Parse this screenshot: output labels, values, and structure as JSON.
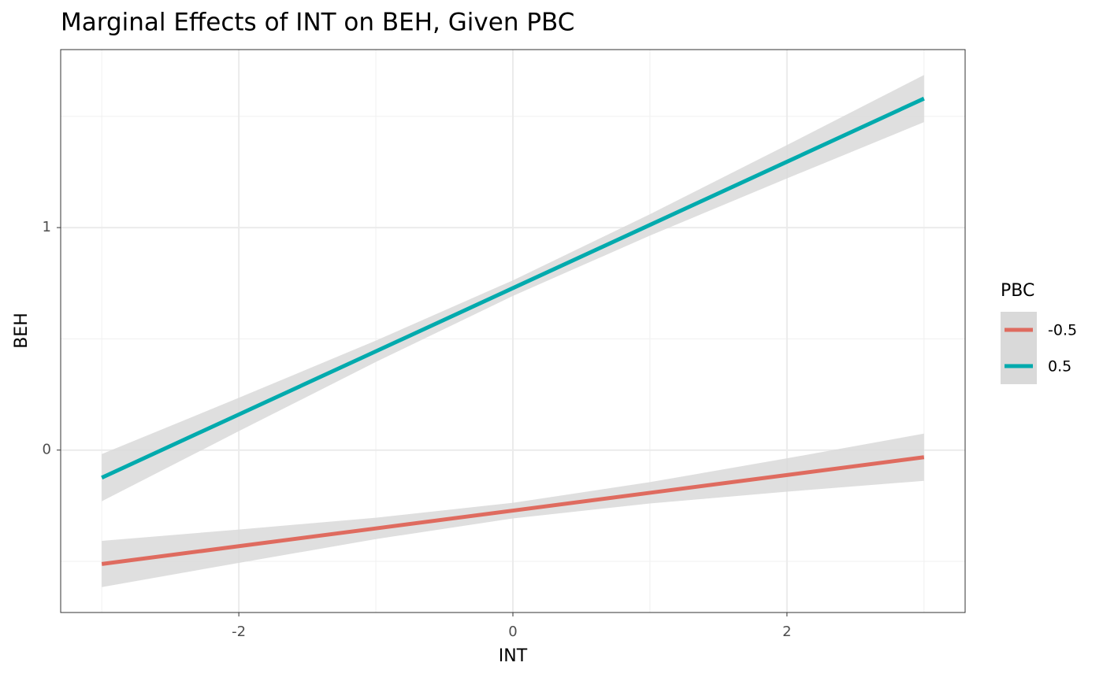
{
  "chart_data": {
    "type": "line",
    "title": "Marginal Effects of INT on BEH, Given PBC",
    "x_label": "INT",
    "y_label": "BEH",
    "legend_title": "PBC",
    "legend_position": "right",
    "x": [
      -3,
      -2,
      -1,
      0,
      1,
      2,
      3
    ],
    "series": [
      {
        "name": "-0.5",
        "color": "#df6b5f",
        "values": [
          -0.512,
          -0.432,
          -0.352,
          -0.272,
          -0.192,
          -0.112,
          -0.032
        ],
        "lower": [
          -0.616,
          -0.507,
          -0.4,
          -0.307,
          -0.24,
          -0.187,
          -0.138
        ],
        "upper": [
          -0.408,
          -0.357,
          -0.304,
          -0.237,
          -0.144,
          -0.037,
          0.074
        ]
      },
      {
        "name": "0.5",
        "color": "#00aaad",
        "values": [
          -0.124,
          0.16,
          0.444,
          0.728,
          1.012,
          1.296,
          1.58
        ],
        "lower": [
          -0.23,
          0.085,
          0.396,
          0.693,
          0.964,
          1.221,
          1.474
        ],
        "upper": [
          -0.018,
          0.235,
          0.492,
          0.763,
          1.06,
          1.371,
          1.686
        ]
      }
    ],
    "band_color": "#d9d9d9",
    "xlim": [
      -3.3,
      3.3
    ],
    "ylim": [
      -0.73,
      1.8
    ],
    "xticks": [
      -2,
      0,
      2
    ],
    "yticks": [
      0,
      1
    ],
    "x_minor_grid": [
      -3,
      -1,
      1,
      3
    ],
    "y_minor_grid": [
      -0.5,
      0.5,
      1.5
    ],
    "grid": true
  }
}
